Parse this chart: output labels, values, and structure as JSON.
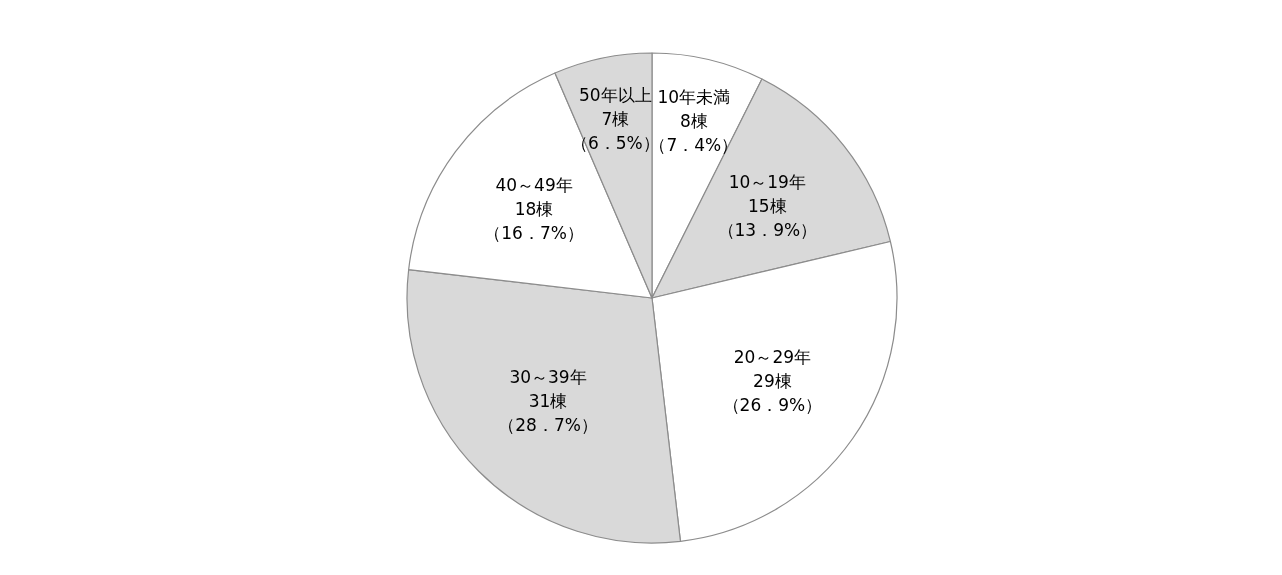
{
  "chart_data": {
    "type": "pie",
    "categories": [
      "10年未満",
      "10～19年",
      "20～29年",
      "30～39年",
      "40～49年",
      "50年以上"
    ],
    "values": [
      8,
      15,
      29,
      31,
      18,
      7
    ],
    "colors": [
      "#ffffff",
      "#d9d9d9",
      "#ffffff",
      "#d9d9d9",
      "#ffffff",
      "#d9d9d9"
    ],
    "value_labels": [
      "8棟（7．4%）",
      "15棟（13．9%）",
      "29棟（26．9%）",
      "31棟（28．7%）",
      "18棟（16．7%）",
      "7棟（6．5%）"
    ]
  }
}
